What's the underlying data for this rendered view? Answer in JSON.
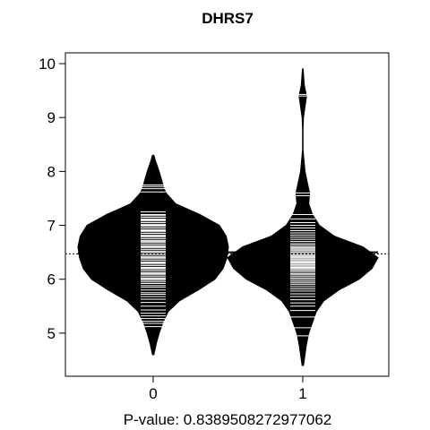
{
  "chart_data": {
    "type": "beanplot",
    "title": "DHRS7",
    "xlabel": "P-value: 0.8389508272977062",
    "categories": [
      "0",
      "1"
    ],
    "y_ticks": [
      "5",
      "6",
      "7",
      "8",
      "9",
      "10"
    ],
    "ylim": [
      4.2,
      10.2
    ],
    "overall_mean": 6.47,
    "grid": false,
    "groups": [
      {
        "label": "0",
        "mean": 6.48,
        "density": [
          [
            4.6,
            0.01
          ],
          [
            4.8,
            0.04
          ],
          [
            5.0,
            0.08
          ],
          [
            5.2,
            0.13
          ],
          [
            5.4,
            0.2
          ],
          [
            5.6,
            0.35
          ],
          [
            5.8,
            0.6
          ],
          [
            6.0,
            0.82
          ],
          [
            6.2,
            0.93
          ],
          [
            6.4,
            0.98
          ],
          [
            6.6,
            1.0
          ],
          [
            6.8,
            0.97
          ],
          [
            7.0,
            0.88
          ],
          [
            7.2,
            0.62
          ],
          [
            7.4,
            0.3
          ],
          [
            7.6,
            0.17
          ],
          [
            7.7,
            0.14
          ],
          [
            7.8,
            0.12
          ],
          [
            8.0,
            0.08
          ],
          [
            8.2,
            0.03
          ],
          [
            8.3,
            0.01
          ]
        ],
        "points": [
          5.12,
          5.18,
          5.22,
          5.27,
          5.32,
          5.37,
          5.43,
          5.5,
          5.57,
          5.63,
          5.68,
          5.72,
          5.75,
          5.8,
          5.85,
          5.88,
          5.92,
          5.95,
          5.98,
          6.0,
          6.02,
          6.05,
          6.08,
          6.1,
          6.12,
          6.15,
          6.18,
          6.2,
          6.22,
          6.25,
          6.28,
          6.3,
          6.32,
          6.35,
          6.38,
          6.4,
          6.42,
          6.45,
          6.47,
          6.5,
          6.52,
          6.55,
          6.58,
          6.6,
          6.62,
          6.65,
          6.68,
          6.7,
          6.72,
          6.75,
          6.78,
          6.8,
          6.82,
          6.85,
          6.88,
          6.9,
          6.92,
          6.95,
          6.98,
          7.0,
          7.02,
          7.05,
          7.08,
          7.1,
          7.12,
          7.15,
          7.18,
          7.2,
          7.25,
          7.62,
          7.68,
          7.72,
          7.75
        ]
      },
      {
        "label": "1",
        "mean": 6.5,
        "density": [
          [
            4.4,
            0.01
          ],
          [
            4.6,
            0.03
          ],
          [
            4.8,
            0.05
          ],
          [
            5.0,
            0.08
          ],
          [
            5.2,
            0.13
          ],
          [
            5.4,
            0.18
          ],
          [
            5.6,
            0.28
          ],
          [
            5.8,
            0.48
          ],
          [
            6.0,
            0.75
          ],
          [
            6.2,
            0.92
          ],
          [
            6.4,
            1.0
          ],
          [
            6.6,
            0.8
          ],
          [
            6.8,
            0.42
          ],
          [
            7.0,
            0.22
          ],
          [
            7.2,
            0.13
          ],
          [
            7.4,
            0.08
          ],
          [
            7.6,
            0.09
          ],
          [
            7.8,
            0.06
          ],
          [
            8.0,
            0.03
          ],
          [
            8.4,
            0.003
          ],
          [
            8.8,
            0.004
          ],
          [
            9.0,
            0.01
          ],
          [
            9.2,
            0.03
          ],
          [
            9.4,
            0.05
          ],
          [
            9.6,
            0.02
          ],
          [
            9.9,
            0.005
          ]
        ],
        "points": [
          4.95,
          5.1,
          5.3,
          5.42,
          5.5,
          5.56,
          5.62,
          5.68,
          5.73,
          5.78,
          5.82,
          5.86,
          5.9,
          5.93,
          5.96,
          5.99,
          6.02,
          6.05,
          6.08,
          6.1,
          6.13,
          6.16,
          6.18,
          6.2,
          6.22,
          6.24,
          6.26,
          6.28,
          6.3,
          6.32,
          6.34,
          6.36,
          6.38,
          6.4,
          6.42,
          6.44,
          6.46,
          6.48,
          6.5,
          6.52,
          6.54,
          6.56,
          6.58,
          6.6,
          6.63,
          6.66,
          6.7,
          6.74,
          6.78,
          6.82,
          6.86,
          6.9,
          6.95,
          7.0,
          7.05,
          7.12,
          7.2,
          7.55,
          7.6,
          9.4,
          9.43
        ]
      }
    ]
  }
}
